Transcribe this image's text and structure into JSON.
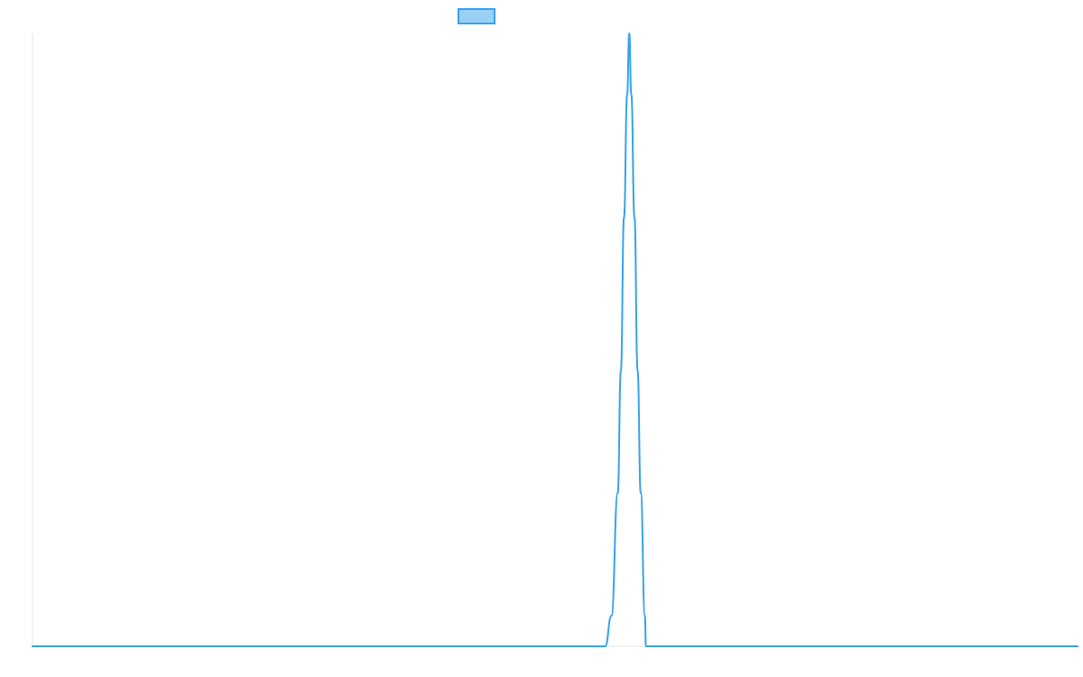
{
  "chart_data": {
    "type": "line",
    "title": "",
    "xlabel": "",
    "ylabel": "",
    "xlim": [
      0,
      1000
    ],
    "ylim": [
      0,
      1
    ],
    "grid": false,
    "legend": {
      "placement": "top-center",
      "entries": [
        {
          "label": "",
          "fill_color": "#9ad0f5",
          "border_color": "#36a2eb"
        }
      ]
    },
    "series": [
      {
        "color": "#36a2eb",
        "points": [
          [
            0,
            0
          ],
          [
            548,
            0
          ],
          [
            554,
            0.05
          ],
          [
            560,
            0.25
          ],
          [
            563,
            0.45
          ],
          [
            566,
            0.7
          ],
          [
            569,
            0.9
          ],
          [
            571,
            1.0
          ],
          [
            573,
            0.9
          ],
          [
            576,
            0.7
          ],
          [
            579,
            0.45
          ],
          [
            582,
            0.25
          ],
          [
            586,
            0.05
          ],
          [
            587,
            0
          ],
          [
            1000,
            0
          ]
        ]
      }
    ]
  }
}
